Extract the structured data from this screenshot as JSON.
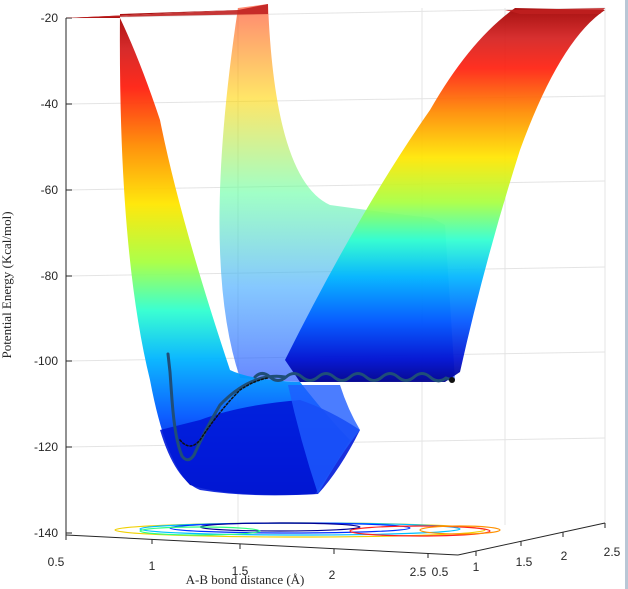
{
  "chart_data": {
    "type": "surface",
    "title": "",
    "xlabel": "A-B bond distance (Å)",
    "ylabel": "",
    "zlabel": "Potential Energy (Kcal/mol)",
    "x_ticks": [
      "0.5",
      "1",
      "1.5",
      "2",
      "2.5"
    ],
    "y_ticks": [
      "0.5",
      "1",
      "1.5",
      "2",
      "2.5"
    ],
    "z_ticks": [
      "-20",
      "-40",
      "-60",
      "-80",
      "-100",
      "-120",
      "-140"
    ],
    "zlim": [
      -140,
      -20
    ],
    "colormap": "jet",
    "grid": true,
    "trajectory": {
      "color": "#1f4e78",
      "start_energy": -98,
      "min_energy": -124,
      "end_energy": -104
    }
  }
}
